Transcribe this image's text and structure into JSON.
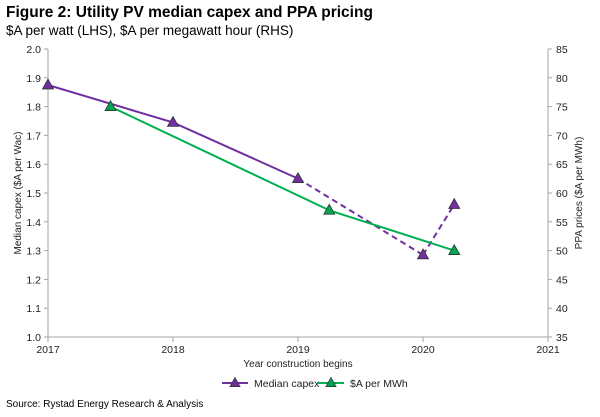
{
  "header": {
    "title": "Figure 2: Utility PV median capex and PPA pricing",
    "subtitle": "$A per watt (LHS), $A per megawatt hour (RHS)"
  },
  "footer": {
    "source": "Source: Rystad Energy Research & Analysis"
  },
  "chart_data": {
    "type": "line",
    "xlabel": "Year construction begins",
    "ylabel_left": "Median capex ($A per Wac)",
    "ylabel_right": "PPA prices ($A per MWh)",
    "xlim": [
      2017,
      2021
    ],
    "ylim_left": [
      1.0,
      2.0
    ],
    "ylim_right": [
      35,
      85
    ],
    "x_ticks": [
      2017,
      2018,
      2019,
      2020,
      2021
    ],
    "y_left_ticks": [
      "1.0",
      "1.1",
      "1.2",
      "1.3",
      "1.4",
      "1.5",
      "1.6",
      "1.7",
      "1.8",
      "1.9",
      "2.0"
    ],
    "y_right_ticks": [
      "35",
      "40",
      "45",
      "50",
      "55",
      "60",
      "65",
      "70",
      "75",
      "80",
      "85"
    ],
    "grid": false,
    "legend_position": "bottom",
    "series": [
      {
        "name": "Median capex",
        "axis": "left",
        "color": "#7030a0",
        "points": [
          {
            "x": 2017.0,
            "y": 1.875,
            "style": "solid"
          },
          {
            "x": 2018.0,
            "y": 1.745,
            "style": "solid"
          },
          {
            "x": 2019.0,
            "y": 1.55,
            "style": "dashed"
          },
          {
            "x": 2020.0,
            "y": 1.285,
            "style": "dashed"
          },
          {
            "x": 2020.25,
            "y": 1.46,
            "style": "dashed"
          }
        ]
      },
      {
        "name": "$A per MWh",
        "axis": "right",
        "color": "#00b050",
        "marker_fill": "#00a651",
        "points": [
          {
            "x": 2017.5,
            "y": 75,
            "style": "solid"
          },
          {
            "x": 2019.25,
            "y": 57,
            "style": "solid"
          },
          {
            "x": 2020.25,
            "y": 50,
            "style": "solid"
          }
        ]
      }
    ]
  }
}
